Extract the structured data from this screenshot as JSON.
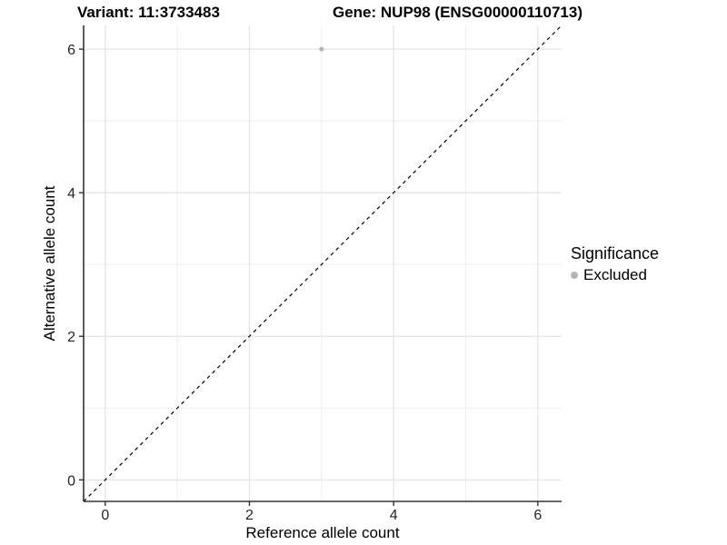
{
  "chart_data": {
    "type": "scatter",
    "titles": {
      "variant": "Variant: 11:3733483",
      "gene": "Gene: NUP98 (ENSG00000110713)"
    },
    "xlabel": "Reference allele count",
    "ylabel": "Alternative allele count",
    "xlim": [
      -0.3,
      6.33
    ],
    "ylim": [
      -0.3,
      6.33
    ],
    "x_major_ticks": [
      0,
      2,
      4,
      6
    ],
    "y_major_ticks": [
      0,
      2,
      4,
      6
    ],
    "x_minor_gridlines": [
      1,
      3,
      5
    ],
    "y_minor_gridlines": [
      1,
      3,
      5
    ],
    "grid": "on",
    "series": [
      {
        "name": "Excluded",
        "color": "#b5b5b5",
        "points": [
          {
            "x": 3,
            "y": 6
          }
        ]
      }
    ],
    "reference_line": {
      "slope": 1,
      "intercept": 0,
      "style": "dashed",
      "color": "#000000"
    },
    "legend": {
      "title": "Significance",
      "position": "right",
      "items": [
        {
          "label": "Excluded",
          "color": "#b5b5b5",
          "marker": "circle"
        }
      ]
    },
    "colors": {
      "background": "#ffffff",
      "grid_major": "#e3e3e3",
      "grid_minor": "#eeeeee",
      "axis_line": "#333333",
      "tick_text": "#262626"
    }
  }
}
